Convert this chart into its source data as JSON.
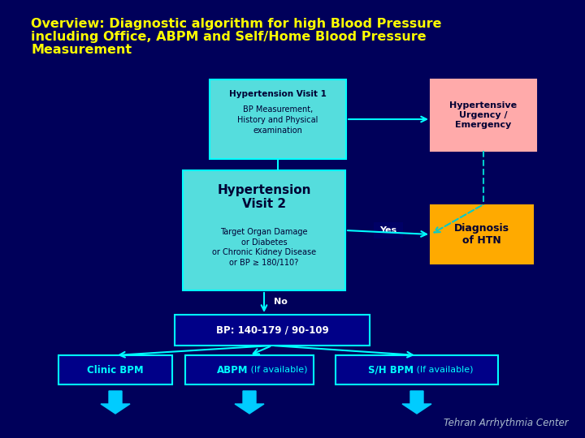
{
  "background_color": "#00005A",
  "title_line1": "Overview: Diagnostic algorithm for high Blood Pressure",
  "title_line2": "including Office, ABPM and Self/Home Blood Pressure",
  "title_line3": "Measurement",
  "title_color": "#FFFF00",
  "title_fontsize": 11.5,
  "title_weight": "bold",
  "watermark": "Tehran Arrhythmia Center",
  "watermark_color": "#AABBCC",
  "watermark_fontsize": 8.5
}
